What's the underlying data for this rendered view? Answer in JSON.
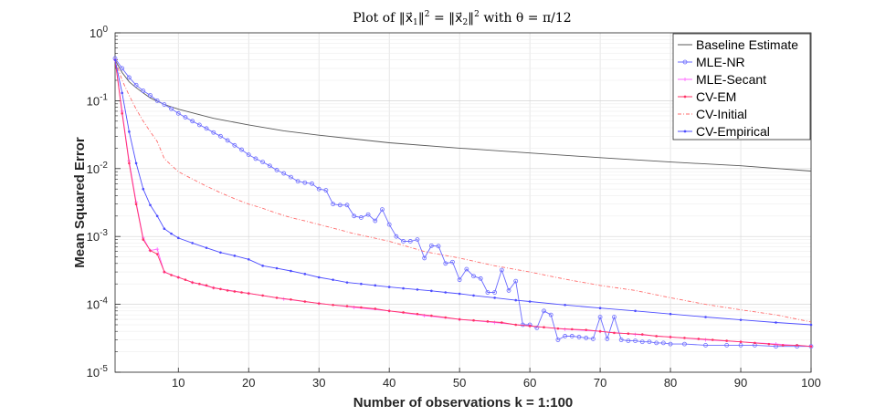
{
  "chart_data": {
    "type": "line",
    "title": "Plot of ‖x⃗₁‖² = ‖x⃗₂‖² with θ = π/12",
    "xlabel": "Number of observations k = 1:100",
    "ylabel": "Mean Squared Error",
    "xlim": [
      1,
      100
    ],
    "ylim": [
      1e-05,
      1
    ],
    "yscale": "log",
    "grid": true,
    "legend_position": "top-right",
    "x_ticks": [
      10,
      20,
      30,
      40,
      50,
      60,
      70,
      80,
      90,
      100
    ],
    "y_ticks": [
      {
        "value": 1,
        "base": "10",
        "exp": "0"
      },
      {
        "value": 0.1,
        "base": "10",
        "exp": "-1"
      },
      {
        "value": 0.01,
        "base": "10",
        "exp": "-2"
      },
      {
        "value": 0.001,
        "base": "10",
        "exp": "-3"
      },
      {
        "value": 0.0001,
        "base": "10",
        "exp": "-4"
      },
      {
        "value": 1e-05,
        "base": "10",
        "exp": "-5"
      }
    ],
    "series": [
      {
        "name": "Baseline Estimate",
        "color": "#595959",
        "dash": "",
        "marker": "none",
        "points": [
          [
            1,
            0.4
          ],
          [
            2,
            0.26
          ],
          [
            3,
            0.19
          ],
          [
            4,
            0.155
          ],
          [
            5,
            0.13
          ],
          [
            6,
            0.11
          ],
          [
            8,
            0.088
          ],
          [
            10,
            0.075
          ],
          [
            15,
            0.055
          ],
          [
            20,
            0.044
          ],
          [
            25,
            0.036
          ],
          [
            30,
            0.031
          ],
          [
            40,
            0.024
          ],
          [
            50,
            0.02
          ],
          [
            60,
            0.017
          ],
          [
            70,
            0.0145
          ],
          [
            80,
            0.0125
          ],
          [
            90,
            0.011
          ],
          [
            100,
            0.0092
          ]
        ]
      },
      {
        "name": "MLE-NR",
        "color": "#6b6bff",
        "dash": "",
        "marker": "circle",
        "points": [
          [
            1,
            0.42
          ],
          [
            2,
            0.3
          ],
          [
            3,
            0.22
          ],
          [
            4,
            0.17
          ],
          [
            5,
            0.14
          ],
          [
            6,
            0.12
          ],
          [
            7,
            0.1
          ],
          [
            8,
            0.088
          ],
          [
            9,
            0.076
          ],
          [
            10,
            0.065
          ],
          [
            11,
            0.057
          ],
          [
            12,
            0.05
          ],
          [
            13,
            0.044
          ],
          [
            14,
            0.039
          ],
          [
            15,
            0.034
          ],
          [
            16,
            0.03
          ],
          [
            17,
            0.026
          ],
          [
            18,
            0.022
          ],
          [
            19,
            0.019
          ],
          [
            20,
            0.016
          ],
          [
            21,
            0.014
          ],
          [
            22,
            0.0125
          ],
          [
            23,
            0.011
          ],
          [
            24,
            0.0095
          ],
          [
            25,
            0.0085
          ],
          [
            26,
            0.0075
          ],
          [
            27,
            0.0065
          ],
          [
            28,
            0.0062
          ],
          [
            29,
            0.006
          ],
          [
            30,
            0.005
          ],
          [
            31,
            0.0048
          ],
          [
            32,
            0.003
          ],
          [
            33,
            0.0029
          ],
          [
            34,
            0.0029
          ],
          [
            35,
            0.002
          ],
          [
            36,
            0.0019
          ],
          [
            37,
            0.0021
          ],
          [
            38,
            0.0017
          ],
          [
            39,
            0.0025
          ],
          [
            40,
            0.0015
          ],
          [
            41,
            0.001
          ],
          [
            42,
            0.00085
          ],
          [
            43,
            0.00085
          ],
          [
            44,
            0.0009
          ],
          [
            45,
            0.00048
          ],
          [
            46,
            0.00073
          ],
          [
            47,
            0.00072
          ],
          [
            48,
            0.0004
          ],
          [
            49,
            0.00042
          ],
          [
            50,
            0.00023
          ],
          [
            51,
            0.00033
          ],
          [
            52,
            0.00026
          ],
          [
            53,
            0.00024
          ],
          [
            54,
            0.00015
          ],
          [
            55,
            0.00015
          ],
          [
            56,
            0.00032
          ],
          [
            57,
            0.00016
          ],
          [
            58,
            0.00022
          ],
          [
            59,
            5e-05
          ],
          [
            60,
            5e-05
          ],
          [
            61,
            4.5e-05
          ],
          [
            62,
            8e-05
          ],
          [
            63,
            7e-05
          ],
          [
            64,
            3e-05
          ],
          [
            65,
            3.4e-05
          ],
          [
            66,
            3.4e-05
          ],
          [
            67,
            3.3e-05
          ],
          [
            68,
            3.2e-05
          ],
          [
            69,
            3.1e-05
          ],
          [
            70,
            6.5e-05
          ],
          [
            71,
            3.1e-05
          ],
          [
            72,
            6.5e-05
          ],
          [
            73,
            3e-05
          ],
          [
            74,
            2.9e-05
          ],
          [
            75,
            2.9e-05
          ],
          [
            76,
            2.8e-05
          ],
          [
            77,
            2.8e-05
          ],
          [
            78,
            2.7e-05
          ],
          [
            79,
            2.7e-05
          ],
          [
            80,
            2.6e-05
          ],
          [
            82,
            2.6e-05
          ],
          [
            85,
            2.5e-05
          ],
          [
            88,
            2.5e-05
          ],
          [
            90,
            2.5e-05
          ],
          [
            92,
            2.5e-05
          ],
          [
            95,
            2.4e-05
          ],
          [
            98,
            2.4e-05
          ],
          [
            100,
            2.4e-05
          ]
        ]
      },
      {
        "name": "MLE-Secant",
        "color": "#ff66ff",
        "dash": "",
        "marker": "plus",
        "points": [
          [
            1,
            0.4
          ],
          [
            2,
            0.07
          ],
          [
            3,
            0.013
          ],
          [
            4,
            0.0032
          ],
          [
            5,
            0.00095
          ],
          [
            6,
            0.00062
          ],
          [
            7,
            0.00065
          ],
          [
            8,
            0.0003
          ],
          [
            10,
            0.00025
          ],
          [
            12,
            0.00021
          ],
          [
            15,
            0.000175
          ],
          [
            20,
            0.000145
          ],
          [
            25,
            0.00012
          ],
          [
            30,
            0.000103
          ],
          [
            35,
            9e-05
          ],
          [
            40,
            8e-05
          ],
          [
            45,
            6.8e-05
          ],
          [
            50,
            6e-05
          ],
          [
            55,
            5.4e-05
          ],
          [
            60,
            4.8e-05
          ],
          [
            65,
            4.3e-05
          ],
          [
            70,
            4e-05
          ],
          [
            75,
            3.6e-05
          ],
          [
            80,
            3.3e-05
          ],
          [
            85,
            3e-05
          ],
          [
            90,
            2.8e-05
          ],
          [
            95,
            2.6e-05
          ],
          [
            100,
            2.4e-05
          ]
        ]
      },
      {
        "name": "CV-EM",
        "color": "#ff3366",
        "dash": "",
        "marker": "dot",
        "points": [
          [
            1,
            0.4
          ],
          [
            2,
            0.065
          ],
          [
            3,
            0.012
          ],
          [
            4,
            0.003
          ],
          [
            5,
            0.0009
          ],
          [
            6,
            0.00062
          ],
          [
            7,
            0.00055
          ],
          [
            8,
            0.0003
          ],
          [
            9,
            0.00027
          ],
          [
            10,
            0.00025
          ],
          [
            11,
            0.00023
          ],
          [
            12,
            0.00021
          ],
          [
            13,
            0.0002
          ],
          [
            14,
            0.00019
          ],
          [
            15,
            0.000175
          ],
          [
            16,
            0.000168
          ],
          [
            17,
            0.00016
          ],
          [
            18,
            0.000155
          ],
          [
            19,
            0.00015
          ],
          [
            20,
            0.000145
          ],
          [
            22,
            0.000135
          ],
          [
            24,
            0.000125
          ],
          [
            26,
            0.000118
          ],
          [
            28,
            0.00011
          ],
          [
            30,
            0.000103
          ],
          [
            32,
            9.8e-05
          ],
          [
            34,
            9.4e-05
          ],
          [
            36,
            9e-05
          ],
          [
            38,
            8.6e-05
          ],
          [
            40,
            8e-05
          ],
          [
            42,
            7.6e-05
          ],
          [
            44,
            7.2e-05
          ],
          [
            46,
            6.8e-05
          ],
          [
            48,
            6.4e-05
          ],
          [
            50,
            6e-05
          ],
          [
            52,
            5.8e-05
          ],
          [
            54,
            5.6e-05
          ],
          [
            56,
            5.4e-05
          ],
          [
            58,
            5e-05
          ],
          [
            60,
            4.8e-05
          ],
          [
            62,
            4.6e-05
          ],
          [
            64,
            4.4e-05
          ],
          [
            66,
            4.3e-05
          ],
          [
            68,
            4.2e-05
          ],
          [
            70,
            4e-05
          ],
          [
            72,
            3.8e-05
          ],
          [
            74,
            3.7e-05
          ],
          [
            76,
            3.6e-05
          ],
          [
            78,
            3.4e-05
          ],
          [
            80,
            3.3e-05
          ],
          [
            82,
            3.2e-05
          ],
          [
            84,
            3.1e-05
          ],
          [
            86,
            3e-05
          ],
          [
            88,
            2.9e-05
          ],
          [
            90,
            2.8e-05
          ],
          [
            92,
            2.7e-05
          ],
          [
            94,
            2.6e-05
          ],
          [
            96,
            2.5e-05
          ],
          [
            98,
            2.5e-05
          ],
          [
            100,
            2.4e-05
          ]
        ]
      },
      {
        "name": "CV-Initial",
        "color": "#ff6b6b",
        "dash": "4 2 1 2",
        "marker": "none",
        "points": [
          [
            1,
            0.4
          ],
          [
            2,
            0.2
          ],
          [
            3,
            0.12
          ],
          [
            4,
            0.075
          ],
          [
            5,
            0.05
          ],
          [
            6,
            0.035
          ],
          [
            7,
            0.025
          ],
          [
            8,
            0.014
          ],
          [
            10,
            0.009
          ],
          [
            12,
            0.007
          ],
          [
            14,
            0.0055
          ],
          [
            16,
            0.0044
          ],
          [
            18,
            0.0036
          ],
          [
            20,
            0.003
          ],
          [
            22,
            0.0026
          ],
          [
            24,
            0.0022
          ],
          [
            26,
            0.0019
          ],
          [
            28,
            0.0017
          ],
          [
            30,
            0.0015
          ],
          [
            35,
            0.0011
          ],
          [
            40,
            0.00085
          ],
          [
            45,
            0.0006
          ],
          [
            50,
            0.00048
          ],
          [
            55,
            0.00037
          ],
          [
            60,
            0.0003
          ],
          [
            65,
            0.000235
          ],
          [
            70,
            0.00019
          ],
          [
            75,
            0.00016
          ],
          [
            80,
            0.000125
          ],
          [
            85,
            0.0001
          ],
          [
            90,
            8.3e-05
          ],
          [
            95,
            7e-05
          ],
          [
            100,
            5.5e-05
          ]
        ]
      },
      {
        "name": "CV-Empirical",
        "color": "#4d4dff",
        "dash": "",
        "marker": "dot",
        "points": [
          [
            1,
            0.4
          ],
          [
            2,
            0.13
          ],
          [
            3,
            0.035
          ],
          [
            4,
            0.012
          ],
          [
            5,
            0.005
          ],
          [
            6,
            0.0029
          ],
          [
            7,
            0.002
          ],
          [
            8,
            0.0013
          ],
          [
            9,
            0.0011
          ],
          [
            10,
            0.00095
          ],
          [
            12,
            0.0008
          ],
          [
            14,
            0.00068
          ],
          [
            16,
            0.00058
          ],
          [
            18,
            0.00052
          ],
          [
            20,
            0.00046
          ],
          [
            22,
            0.00037
          ],
          [
            24,
            0.00034
          ],
          [
            26,
            0.00031
          ],
          [
            28,
            0.00028
          ],
          [
            30,
            0.00025
          ],
          [
            32,
            0.00023
          ],
          [
            34,
            0.00021
          ],
          [
            36,
            0.0002
          ],
          [
            38,
            0.00019
          ],
          [
            40,
            0.00018
          ],
          [
            42,
            0.000172
          ],
          [
            44,
            0.000165
          ],
          [
            46,
            0.000158
          ],
          [
            48,
            0.00015
          ],
          [
            50,
            0.000143
          ],
          [
            52,
            0.000135
          ],
          [
            55,
            0.000125
          ],
          [
            58,
            0.000115
          ],
          [
            60,
            0.00011
          ],
          [
            65,
            9.8e-05
          ],
          [
            70,
            8.8e-05
          ],
          [
            75,
            8e-05
          ],
          [
            80,
            7.2e-05
          ],
          [
            85,
            6.5e-05
          ],
          [
            90,
            5.9e-05
          ],
          [
            95,
            5.4e-05
          ],
          [
            100,
            5e-05
          ]
        ]
      }
    ]
  }
}
